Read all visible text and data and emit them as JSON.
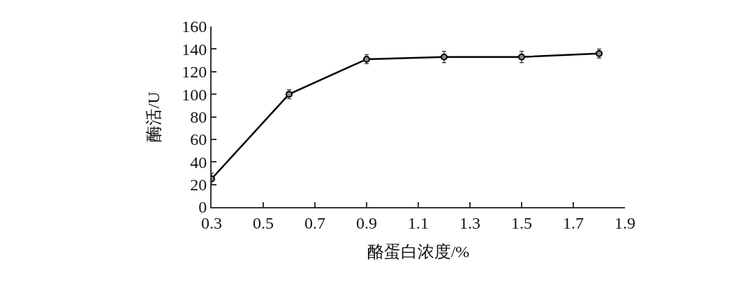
{
  "chart_data": {
    "type": "line",
    "xlabel": "酪蛋白浓度/%",
    "ylabel": "酶活/U",
    "x": [
      0.3,
      0.6,
      0.9,
      1.2,
      1.5,
      1.8
    ],
    "series": [
      {
        "color": "#000000",
        "values": [
          25,
          100,
          131,
          133,
          133,
          136
        ],
        "errors": [
          5,
          4,
          4,
          5,
          5,
          4
        ]
      }
    ],
    "xlim": [
      0.3,
      1.9
    ],
    "xticks": [
      0.3,
      0.5,
      0.7,
      0.9,
      1.1,
      1.3,
      1.5,
      1.7,
      1.9
    ],
    "ylim": [
      0,
      160
    ],
    "yticks": [
      0,
      20,
      40,
      60,
      80,
      100,
      120,
      140,
      160
    ],
    "marker": "circle",
    "line_style": "solid"
  }
}
